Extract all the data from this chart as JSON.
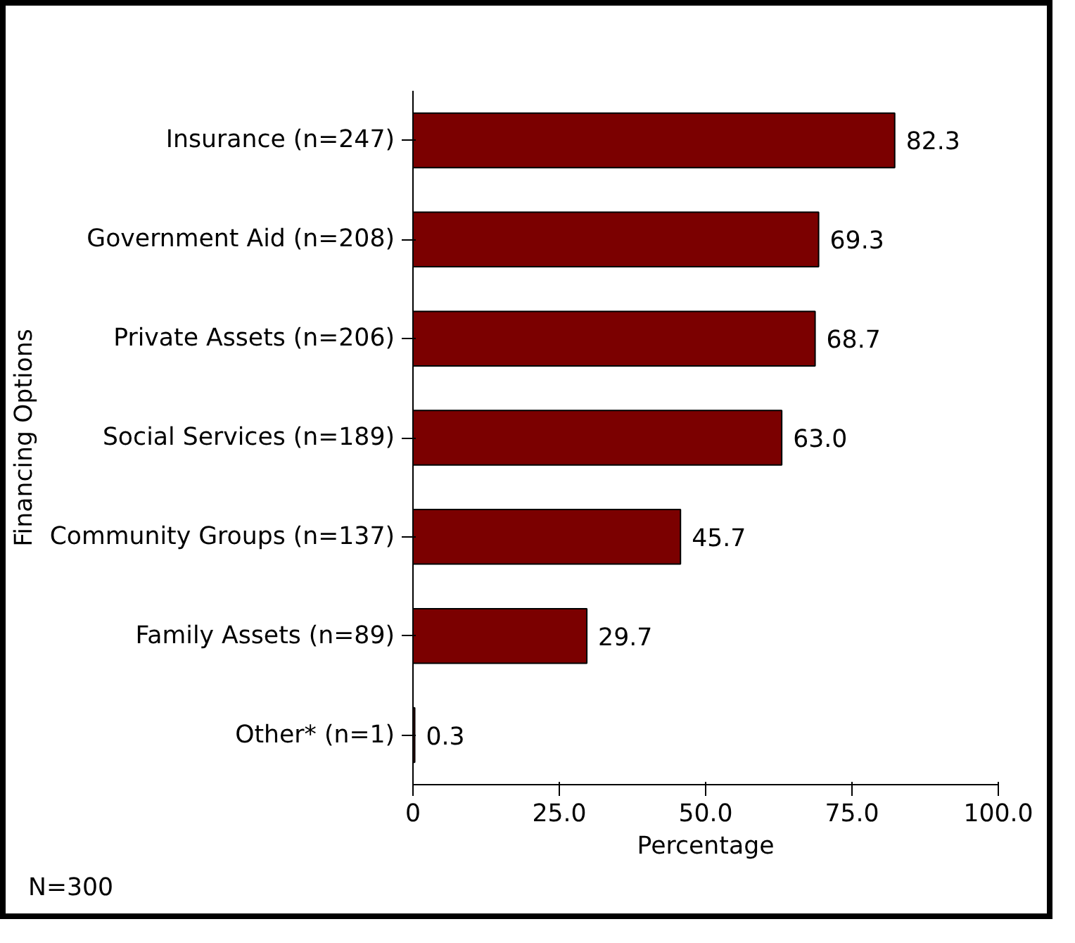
{
  "chart_data": {
    "type": "bar",
    "orientation": "horizontal",
    "xlabel": "Percentage",
    "ylabel": "Financing Options",
    "categories": [
      "Insurance (n=247)",
      "Government Aid (n=208)",
      "Private Assets (n=206)",
      "Social Services (n=189)",
      "Community Groups (n=137)",
      "Family Assets (n=89)",
      "Other* (n=1)"
    ],
    "values": [
      82.3,
      69.3,
      68.7,
      63.0,
      45.7,
      29.7,
      0.3
    ],
    "value_labels": [
      "82.3",
      "69.3",
      "68.7",
      "63.0",
      "45.7",
      "29.7",
      "0.3"
    ],
    "color": "#7b0000",
    "xlim": [
      0,
      100
    ],
    "xticks": [
      0,
      {
        "value": 25,
        "label": "25.0"
      },
      {
        "value": 50,
        "label": "50.0"
      },
      {
        "value": 75,
        "label": "75.0"
      },
      {
        "value": 100,
        "label": "100.0"
      }
    ],
    "grid": false,
    "annotations": [
      "N=300"
    ]
  }
}
